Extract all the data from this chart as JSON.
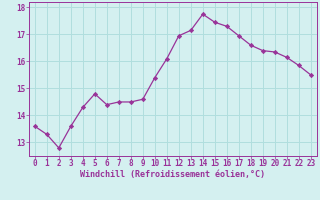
{
  "x": [
    0,
    1,
    2,
    3,
    4,
    5,
    6,
    7,
    8,
    9,
    10,
    11,
    12,
    13,
    14,
    15,
    16,
    17,
    18,
    19,
    20,
    21,
    22,
    23
  ],
  "y": [
    13.6,
    13.3,
    12.8,
    13.6,
    14.3,
    14.8,
    14.4,
    14.5,
    14.5,
    14.6,
    15.4,
    16.1,
    16.95,
    17.15,
    17.75,
    17.45,
    17.3,
    16.95,
    16.6,
    16.4,
    16.35,
    16.15,
    15.85,
    15.5
  ],
  "line_color": "#993399",
  "marker": "D",
  "marker_size": 2.2,
  "bg_color": "#d4f0f0",
  "grid_color": "#b0dede",
  "xlabel": "Windchill (Refroidissement éolien,°C)",
  "ylabel": "",
  "xlim": [
    -0.5,
    23.5
  ],
  "ylim": [
    12.5,
    18.2
  ],
  "yticks": [
    13,
    14,
    15,
    16,
    17,
    18
  ],
  "xticks": [
    0,
    1,
    2,
    3,
    4,
    5,
    6,
    7,
    8,
    9,
    10,
    11,
    12,
    13,
    14,
    15,
    16,
    17,
    18,
    19,
    20,
    21,
    22,
    23
  ],
  "axis_color": "#993399",
  "tick_color": "#993399",
  "label_color": "#993399",
  "font_family": "monospace",
  "tick_fontsize": 5.5,
  "label_fontsize": 6.0
}
